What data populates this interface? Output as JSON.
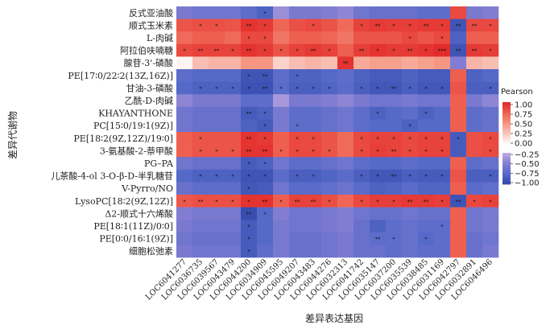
{
  "chart_data": {
    "type": "heatmap",
    "xlabel": "差异表达基因",
    "ylabel": "差异代谢物",
    "legend_title": "Pearson",
    "legend_ticks_pos": [
      "1.00",
      "0.75",
      "0.50",
      "0.25",
      "0.00"
    ],
    "legend_ticks_neg": [
      "−0.25",
      "−0.50",
      "−0.75",
      "−1.00"
    ],
    "value_range": [
      -1,
      1
    ],
    "rows": [
      "反式亚油酸",
      "顺式玉米素",
      "L-肉碱",
      "阿拉伯呋喃糖",
      "腺苷-3'-磷酸",
      "PE[17∶0/22∶2(13Z,16Z)]",
      "甘油-3-磷酸",
      "乙酰-D-肉碱",
      "KHAYANTHONE",
      "PC[15∶0/19∶1(9Z)]",
      "PE[18∶2(9Z,12Z)/19∶0]",
      "3-氨基酸-2-萘甲酸",
      "PG–PA",
      "儿茶酸-4-ol 3-O-β-D-半乳糖苷",
      "V-Pyrro/NO",
      "LysoPC[18∶2(9Z,12Z)]",
      "Δ2-顺式十六烯酸",
      "PE[18∶1(11Z)/0∶0]",
      "PE[0∶0/16∶1(9Z)]",
      "细胞松弛素"
    ],
    "columns": [
      "LOC6041277",
      "LOC6036735",
      "LOC6039567",
      "LOC6043479",
      "LOC6044200",
      "LOC6034909",
      "LOC6045595",
      "LOC6049207",
      "LOC6043483",
      "LOC6044276",
      "LOC6032313",
      "LOC6041742",
      "LOC6035147",
      "LOC6037200",
      "LOC6035539",
      "LOC6038485",
      "LOC6031169",
      "LOC6042797",
      "LOC6032891",
      "LOC6046496"
    ],
    "values": [
      [
        -0.55,
        -0.6,
        -0.6,
        -0.6,
        -0.7,
        -0.8,
        -0.4,
        -0.55,
        -0.55,
        -0.5,
        -0.45,
        -0.6,
        -0.65,
        -0.65,
        -0.65,
        -0.7,
        -0.7,
        0.85,
        -0.55,
        -0.5
      ],
      [
        0.8,
        0.82,
        0.82,
        0.8,
        0.95,
        0.92,
        0.72,
        0.82,
        0.85,
        0.8,
        0.7,
        0.88,
        0.92,
        0.9,
        0.9,
        0.92,
        0.92,
        -0.9,
        0.85,
        0.85
      ],
      [
        0.7,
        0.75,
        0.75,
        0.7,
        0.85,
        0.85,
        0.65,
        0.75,
        0.75,
        0.72,
        0.65,
        0.8,
        0.8,
        0.8,
        0.85,
        0.8,
        0.85,
        -0.8,
        0.75,
        0.75
      ],
      [
        0.85,
        0.88,
        0.88,
        0.88,
        0.95,
        0.92,
        0.8,
        0.88,
        0.92,
        0.88,
        0.75,
        0.9,
        0.95,
        0.92,
        0.92,
        0.95,
        0.98,
        -0.9,
        0.92,
        0.9
      ],
      [
        0.05,
        0.3,
        0.35,
        0.35,
        0.5,
        0.5,
        0.2,
        0.3,
        0.35,
        0.3,
        0.95,
        0.4,
        0.45,
        0.45,
        0.4,
        0.45,
        0.5,
        -0.5,
        0.35,
        0.3
      ],
      [
        -0.7,
        -0.75,
        -0.75,
        -0.75,
        -0.9,
        -0.9,
        -0.7,
        -0.8,
        -0.8,
        -0.75,
        -0.7,
        -0.8,
        -0.85,
        -0.85,
        -0.8,
        -0.85,
        -0.85,
        0.75,
        -0.8,
        -0.75
      ],
      [
        -0.75,
        -0.8,
        -0.8,
        -0.8,
        -0.92,
        -0.92,
        -0.72,
        -0.82,
        -0.82,
        -0.78,
        -0.72,
        -0.82,
        -0.88,
        -0.88,
        -0.82,
        -0.88,
        -0.88,
        0.8,
        -0.82,
        -0.82
      ],
      [
        -0.45,
        -0.55,
        -0.55,
        -0.55,
        -0.7,
        -0.7,
        -0.35,
        -0.55,
        -0.55,
        -0.5,
        -0.45,
        -0.55,
        -0.6,
        -0.6,
        -0.55,
        -0.6,
        -0.6,
        0.75,
        -0.55,
        -0.45
      ],
      [
        -0.6,
        -0.65,
        -0.65,
        -0.65,
        -0.85,
        -0.8,
        -0.55,
        -0.7,
        -0.7,
        -0.65,
        -0.6,
        -0.7,
        -0.8,
        -0.75,
        -0.7,
        -0.8,
        -0.75,
        0.75,
        -0.7,
        -0.65
      ],
      [
        -0.6,
        -0.65,
        -0.65,
        -0.65,
        -0.8,
        -0.85,
        -0.55,
        -0.7,
        -0.7,
        -0.65,
        -0.6,
        -0.7,
        -0.75,
        -0.75,
        -0.8,
        -0.75,
        -0.75,
        0.75,
        -0.7,
        -0.65
      ],
      [
        0.75,
        0.8,
        0.8,
        0.8,
        0.95,
        0.92,
        0.75,
        0.85,
        0.85,
        0.8,
        0.7,
        0.85,
        0.88,
        0.88,
        0.85,
        0.88,
        0.88,
        -0.85,
        0.82,
        0.85
      ],
      [
        0.75,
        0.8,
        0.8,
        0.8,
        0.95,
        0.95,
        0.75,
        0.85,
        0.85,
        0.8,
        0.7,
        0.85,
        0.9,
        0.88,
        0.85,
        0.88,
        0.88,
        -0.85,
        0.82,
        0.85
      ],
      [
        -0.6,
        -0.65,
        -0.65,
        -0.65,
        -0.85,
        -0.8,
        -0.6,
        -0.7,
        -0.7,
        -0.65,
        -0.6,
        -0.7,
        -0.75,
        -0.75,
        -0.7,
        -0.75,
        -0.75,
        0.75,
        -0.7,
        -0.65
      ],
      [
        -0.75,
        -0.8,
        -0.8,
        -0.8,
        -0.9,
        -0.9,
        -0.72,
        -0.82,
        -0.82,
        -0.78,
        -0.72,
        -0.82,
        -0.88,
        -0.88,
        -0.82,
        -0.85,
        -0.85,
        0.8,
        -0.82,
        -0.82
      ],
      [
        -0.65,
        -0.7,
        -0.7,
        -0.7,
        -0.88,
        -0.85,
        -0.6,
        -0.72,
        -0.72,
        -0.68,
        -0.62,
        -0.72,
        -0.8,
        -0.78,
        -0.72,
        -0.78,
        -0.78,
        0.75,
        -0.72,
        -0.68
      ],
      [
        0.78,
        0.82,
        0.82,
        0.82,
        0.95,
        0.95,
        0.75,
        0.88,
        0.88,
        0.82,
        0.72,
        0.85,
        0.9,
        0.9,
        0.92,
        0.92,
        0.9,
        -0.9,
        0.85,
        0.88
      ],
      [
        -0.5,
        -0.55,
        -0.55,
        -0.55,
        -0.95,
        -0.75,
        -0.5,
        -0.6,
        -0.6,
        -0.55,
        -0.5,
        -0.6,
        -0.65,
        -0.65,
        -0.6,
        -0.65,
        -0.65,
        0.75,
        -0.6,
        -0.55
      ],
      [
        -0.55,
        -0.6,
        -0.6,
        -0.6,
        -0.85,
        -0.75,
        -0.55,
        -0.6,
        -0.6,
        -0.55,
        -0.5,
        -0.65,
        -0.8,
        -0.7,
        -0.65,
        -0.7,
        -0.7,
        0.75,
        -0.6,
        -0.55
      ],
      [
        -0.6,
        -0.65,
        -0.65,
        -0.65,
        -0.85,
        -0.75,
        -0.55,
        -0.65,
        -0.65,
        -0.6,
        -0.55,
        -0.65,
        -0.7,
        -0.7,
        -0.65,
        -0.75,
        -0.7,
        0.75,
        -0.65,
        -0.6
      ],
      [
        -0.55,
        -0.6,
        -0.6,
        -0.6,
        -0.85,
        -0.7,
        -0.55,
        -0.65,
        -0.65,
        -0.6,
        -0.55,
        -0.65,
        -0.65,
        -0.7,
        -0.65,
        -0.7,
        -0.7,
        0.75,
        -0.65,
        -0.55
      ]
    ],
    "significance": [
      [
        "",
        "",
        "",
        "",
        "",
        "*",
        "",
        "",
        "",
        "",
        "",
        "",
        "",
        "",
        "",
        "",
        "",
        "",
        "",
        ""
      ],
      [
        "",
        "*",
        "*",
        "",
        "**",
        "*",
        "",
        "",
        "*",
        "",
        "",
        "*",
        "**",
        "*",
        "*",
        "**",
        "*",
        "**",
        "**",
        "*"
      ],
      [
        "",
        "",
        "",
        "",
        "*",
        "*",
        "",
        "",
        "",
        "",
        "",
        "",
        "",
        "",
        "*",
        "",
        "*",
        "",
        "",
        ""
      ],
      [
        "*",
        "**",
        "**",
        "*",
        "**",
        "*",
        "*",
        "*",
        "**",
        "*",
        "",
        "**",
        "*",
        "*",
        "**",
        "*",
        "***",
        "**",
        "**",
        "*"
      ],
      [
        "",
        "",
        "",
        "",
        "",
        "",
        "",
        "",
        "",
        "",
        "**",
        "",
        "",
        "",
        "",
        "",
        "",
        "",
        "",
        ""
      ],
      [
        "",
        "",
        "",
        "",
        "*",
        "**",
        "",
        "*",
        "",
        "",
        "",
        "",
        "",
        "",
        "",
        "",
        "",
        "",
        "",
        ""
      ],
      [
        "",
        "*",
        "*",
        "*",
        "*",
        "**",
        "*",
        "*",
        "*",
        "*",
        "",
        "*",
        "*",
        "**",
        "*",
        "*",
        "*",
        "",
        "",
        "*"
      ],
      [
        "",
        "",
        "",
        "",
        "",
        "",
        "",
        "",
        "",
        "",
        "",
        "",
        "",
        "",
        "",
        "",
        "",
        "",
        "",
        ""
      ],
      [
        "",
        "",
        "",
        "",
        "**",
        "*",
        "",
        "",
        "",
        "",
        "",
        "",
        "*",
        "",
        "",
        "*",
        "",
        "",
        "",
        ""
      ],
      [
        "",
        "",
        "",
        "",
        "",
        "*",
        "",
        "*",
        "",
        "",
        "",
        "",
        "",
        "",
        "*",
        "",
        "",
        "",
        "",
        ""
      ],
      [
        "",
        "*",
        "",
        "",
        "**",
        "*",
        "",
        "*",
        "*",
        "",
        "",
        "*",
        "*",
        "*",
        "*",
        "*",
        "*",
        "*",
        "",
        "*"
      ],
      [
        "",
        "*",
        "*",
        "*",
        "**",
        "**",
        "*",
        "*",
        "*",
        "*",
        "",
        "*",
        "*",
        "**",
        "*",
        "*",
        "*",
        "",
        "",
        "*"
      ],
      [
        "",
        "",
        "",
        "",
        "*",
        "*",
        "",
        "",
        "",
        "",
        "",
        "",
        "",
        "",
        "",
        "",
        "",
        "",
        "",
        ""
      ],
      [
        "",
        "*",
        "*",
        "*",
        "*",
        "*",
        "",
        "*",
        "*",
        "",
        "",
        "*",
        "*",
        "**",
        "*",
        "*",
        "*",
        "",
        "",
        "*"
      ],
      [
        "",
        "",
        "",
        "",
        "*",
        "",
        "",
        "",
        "",
        "",
        "",
        "",
        "",
        "",
        "",
        "",
        "",
        "",
        "",
        ""
      ],
      [
        "*",
        "**",
        "*",
        "*",
        "*",
        "**",
        "*",
        "**",
        "**",
        "*",
        "",
        "*",
        "*",
        "*",
        "**",
        "**",
        "*",
        "**",
        "*",
        "*"
      ],
      [
        "",
        "",
        "",
        "",
        "**",
        "*",
        "",
        "",
        "",
        "",
        "",
        "",
        "",
        "",
        "",
        "",
        "",
        "",
        "",
        ""
      ],
      [
        "",
        "",
        "",
        "",
        "*",
        "",
        "",
        "",
        "",
        "",
        "",
        "",
        "",
        "",
        "",
        "",
        "*",
        "",
        "",
        ""
      ],
      [
        "",
        "",
        "",
        "",
        "*",
        "",
        "",
        "",
        "",
        "",
        "",
        "",
        "**",
        "*",
        "",
        "*",
        "",
        "",
        "",
        ""
      ],
      [
        "",
        "",
        "",
        "",
        "*",
        "",
        "",
        "",
        "",
        "",
        "",
        "",
        "",
        "",
        "",
        "",
        "",
        "",
        "",
        ""
      ]
    ]
  }
}
